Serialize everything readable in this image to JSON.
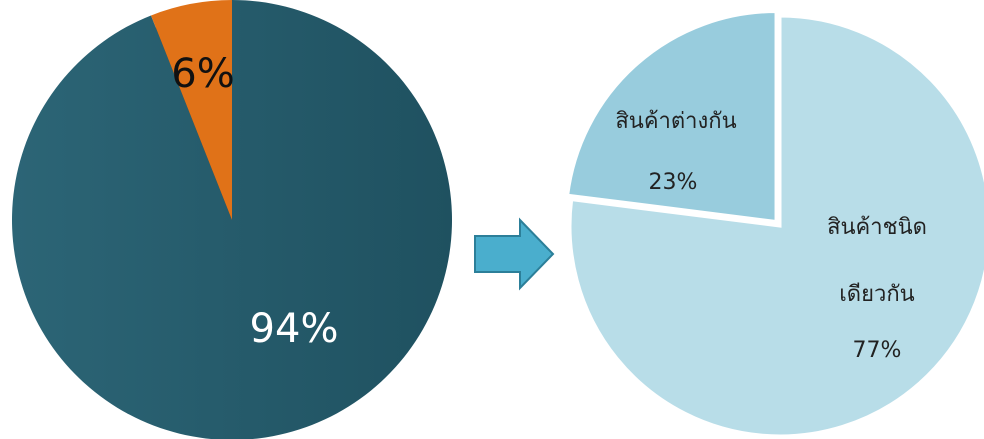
{
  "chart_data": [
    {
      "type": "pie",
      "categories": [
        "",
        ""
      ],
      "values": [
        94,
        6
      ],
      "data_labels": [
        "94%",
        "6%"
      ],
      "colors": [
        "#235868",
        "#e07218"
      ],
      "title": ""
    },
    {
      "type": "pie",
      "categories": [
        "สินค้าชนิดเดียวกัน",
        "สินค้าต่างกัน"
      ],
      "values": [
        77,
        23
      ],
      "data_labels": [
        "77%",
        "23%"
      ],
      "colors": [
        "#b8dde8",
        "#98ccdd"
      ],
      "label_lines": {
        "same_line1": "สินค้าชนิด",
        "same_line2": "เดียวกัน",
        "diff": "สินค้าต่างกัน"
      },
      "title": ""
    }
  ],
  "arrow": {
    "color": "#4aaecd",
    "direction": "right"
  }
}
